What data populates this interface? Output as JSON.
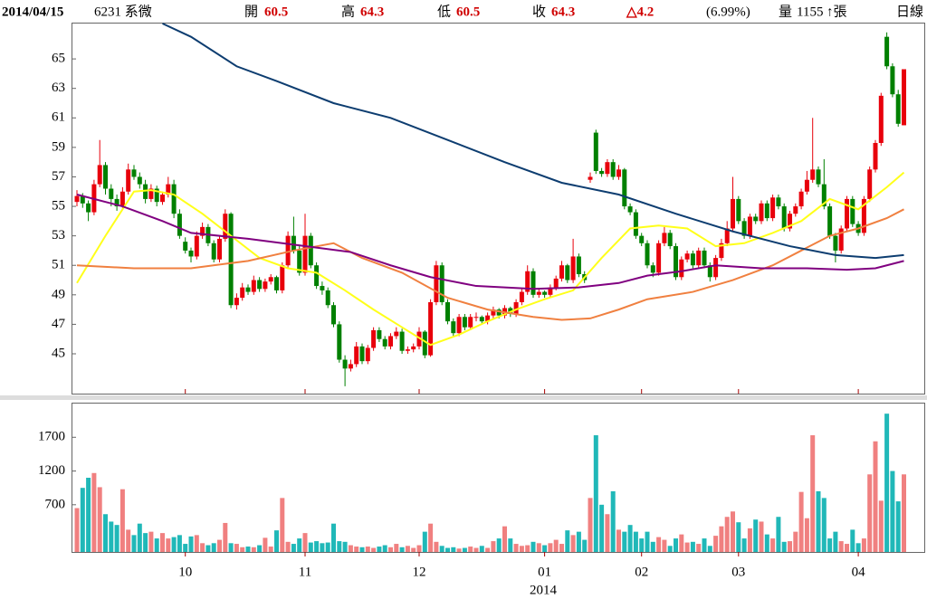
{
  "header": {
    "date": "2014/04/15",
    "stock": "6231 系微",
    "open_label": "開",
    "open": 60.5,
    "high_label": "高",
    "high": 64.3,
    "low_label": "低",
    "low": 60.5,
    "close_label": "收",
    "close": 64.3,
    "change": "△4.2",
    "change_pct": "(6.99%)",
    "volume_label": "量",
    "volume": 1155,
    "volume_unit": "↑張",
    "period": "日線"
  },
  "chart_data": {
    "type": "candlestick",
    "up_color": "#e8000b",
    "down_color": "#008000",
    "categories": [
      null,
      null,
      null,
      null,
      null,
      null,
      null,
      null,
      null,
      null,
      null,
      null,
      null,
      null,
      null,
      null,
      null,
      null,
      null,
      "10",
      null,
      null,
      null,
      null,
      null,
      null,
      null,
      null,
      null,
      null,
      null,
      null,
      null,
      null,
      null,
      null,
      null,
      null,
      null,
      null,
      "11",
      null,
      null,
      null,
      null,
      null,
      null,
      null,
      null,
      null,
      null,
      null,
      null,
      null,
      null,
      null,
      null,
      null,
      null,
      null,
      "12",
      null,
      null,
      null,
      null,
      null,
      null,
      null,
      null,
      null,
      null,
      null,
      null,
      null,
      null,
      null,
      null,
      null,
      null,
      null,
      null,
      null,
      "01",
      null,
      null,
      null,
      null,
      null,
      null,
      null,
      null,
      null,
      null,
      null,
      null,
      null,
      null,
      null,
      null,
      "02",
      null,
      null,
      null,
      null,
      null,
      null,
      null,
      null,
      null,
      null,
      null,
      null,
      null,
      null,
      null,
      null,
      "03",
      null,
      null,
      null,
      null,
      null,
      null,
      null,
      null,
      null,
      null,
      null,
      null,
      null,
      null,
      null,
      null,
      null,
      null,
      null,
      null,
      "04",
      null,
      null,
      null,
      null,
      null,
      null,
      null,
      null
    ],
    "x_year": "2014",
    "ohlc": [
      [
        55.3,
        56.1,
        55.0,
        55.7
      ],
      [
        55.7,
        55.9,
        54.9,
        55.2
      ],
      [
        55.2,
        55.4,
        54.0,
        54.6
      ],
      [
        54.6,
        56.8,
        54.4,
        56.5
      ],
      [
        56.5,
        59.5,
        56.3,
        57.8
      ],
      [
        57.8,
        58.0,
        55.8,
        56.2
      ],
      [
        56.2,
        56.5,
        55.0,
        55.5
      ],
      [
        55.5,
        55.8,
        54.7,
        55.0
      ],
      [
        55.0,
        56.3,
        54.8,
        56.0
      ],
      [
        56.0,
        57.9,
        55.8,
        57.5
      ],
      [
        57.5,
        57.8,
        56.8,
        57.0
      ],
      [
        57.0,
        57.3,
        56.2,
        56.5
      ],
      [
        56.5,
        56.8,
        55.2,
        55.5
      ],
      [
        55.5,
        56.5,
        55.3,
        56.2
      ],
      [
        56.2,
        56.4,
        55.0,
        55.3
      ],
      [
        55.3,
        56.0,
        55.1,
        55.8
      ],
      [
        55.8,
        57.0,
        55.6,
        56.5
      ],
      [
        56.5,
        56.8,
        54.2,
        54.5
      ],
      [
        54.5,
        54.8,
        52.8,
        53.0
      ],
      [
        52.6,
        52.9,
        51.8,
        52.0
      ],
      [
        52.0,
        52.2,
        51.2,
        51.6
      ],
      [
        51.6,
        53.3,
        51.4,
        53.0
      ],
      [
        53.0,
        53.9,
        52.8,
        53.6
      ],
      [
        53.6,
        53.8,
        52.3,
        52.5
      ],
      [
        52.5,
        52.7,
        51.2,
        51.4
      ],
      [
        51.4,
        53.0,
        51.2,
        52.8
      ],
      [
        52.8,
        54.8,
        52.6,
        54.5
      ],
      [
        54.5,
        54.6,
        48.1,
        48.3
      ],
      [
        48.3,
        49.1,
        48.0,
        48.8
      ],
      [
        48.8,
        49.8,
        48.6,
        49.5
      ],
      [
        49.5,
        49.7,
        49.0,
        49.2
      ],
      [
        49.2,
        50.3,
        49.0,
        50.0
      ],
      [
        50.0,
        50.2,
        49.2,
        49.4
      ],
      [
        49.4,
        50.1,
        49.2,
        49.9
      ],
      [
        49.9,
        50.4,
        49.7,
        50.2
      ],
      [
        50.2,
        50.3,
        49.1,
        49.3
      ],
      [
        49.3,
        51.2,
        49.1,
        51.0
      ],
      [
        51.0,
        53.3,
        50.8,
        53.0
      ],
      [
        53.0,
        54.3,
        51.8,
        52.0
      ],
      [
        52.0,
        52.3,
        50.3,
        50.5
      ],
      [
        50.5,
        54.5,
        50.3,
        53.0
      ],
      [
        53.0,
        53.2,
        50.8,
        51.0
      ],
      [
        51.0,
        51.2,
        49.4,
        49.6
      ],
      [
        49.6,
        49.9,
        49.0,
        49.3
      ],
      [
        49.3,
        49.5,
        48.1,
        48.3
      ],
      [
        48.3,
        48.5,
        46.8,
        47.0
      ],
      [
        47.0,
        47.2,
        44.4,
        44.6
      ],
      [
        44.6,
        44.9,
        42.8,
        44.0
      ],
      [
        44.0,
        44.6,
        43.8,
        44.3
      ],
      [
        44.3,
        45.8,
        44.1,
        45.5
      ],
      [
        45.5,
        45.7,
        44.3,
        44.5
      ],
      [
        44.5,
        45.6,
        44.3,
        45.4
      ],
      [
        45.4,
        46.8,
        45.2,
        46.6
      ],
      [
        46.6,
        46.8,
        45.8,
        46.0
      ],
      [
        46.0,
        46.2,
        45.3,
        45.5
      ],
      [
        45.5,
        46.4,
        45.3,
        46.2
      ],
      [
        46.2,
        46.8,
        46.0,
        46.5
      ],
      [
        46.5,
        46.7,
        45.0,
        45.2
      ],
      [
        45.2,
        45.5,
        45.0,
        45.3
      ],
      [
        45.3,
        45.7,
        45.1,
        45.5
      ],
      [
        45.5,
        46.8,
        45.3,
        46.5
      ],
      [
        46.5,
        46.6,
        44.7,
        44.9
      ],
      [
        44.9,
        48.7,
        44.8,
        48.5
      ],
      [
        48.5,
        51.3,
        48.3,
        51.0
      ],
      [
        51.0,
        51.2,
        48.3,
        48.5
      ],
      [
        48.5,
        48.7,
        47.0,
        47.2
      ],
      [
        47.2,
        47.4,
        46.2,
        46.4
      ],
      [
        46.4,
        47.7,
        46.2,
        47.5
      ],
      [
        47.5,
        47.7,
        46.6,
        46.8
      ],
      [
        46.8,
        47.7,
        46.6,
        47.5
      ],
      [
        47.5,
        47.8,
        47.2,
        47.5
      ],
      [
        47.5,
        47.6,
        47.0,
        47.2
      ],
      [
        47.2,
        47.8,
        47.0,
        47.6
      ],
      [
        47.6,
        48.2,
        47.4,
        48.0
      ],
      [
        48.0,
        48.1,
        47.4,
        47.6
      ],
      [
        47.6,
        48.3,
        47.4,
        48.1
      ],
      [
        48.1,
        48.2,
        47.5,
        47.7
      ],
      [
        47.7,
        48.7,
        47.5,
        48.5
      ],
      [
        48.5,
        49.4,
        48.3,
        49.2
      ],
      [
        49.2,
        51.0,
        49.0,
        50.6
      ],
      [
        50.6,
        50.8,
        48.8,
        49.0
      ],
      [
        49.0,
        49.4,
        48.8,
        49.2
      ],
      [
        49.2,
        49.3,
        48.8,
        49.0
      ],
      [
        49.0,
        49.7,
        48.8,
        49.5
      ],
      [
        49.5,
        50.3,
        49.3,
        50.1
      ],
      [
        50.1,
        51.3,
        49.9,
        51.0
      ],
      [
        51.0,
        51.1,
        49.8,
        50.0
      ],
      [
        50.0,
        52.8,
        49.8,
        51.6
      ],
      [
        51.6,
        51.8,
        50.2,
        50.4
      ],
      [
        50.4,
        50.6,
        49.8,
        50.0
      ],
      [
        56.8,
        57.3,
        56.6,
        57.0
      ],
      [
        60.0,
        60.2,
        57.2,
        57.4
      ],
      [
        57.4,
        57.6,
        57.0,
        57.2
      ],
      [
        57.2,
        58.2,
        57.0,
        58.0
      ],
      [
        58.0,
        58.2,
        56.8,
        57.0
      ],
      [
        57.0,
        57.8,
        56.8,
        57.5
      ],
      [
        57.5,
        57.6,
        54.8,
        55.0
      ],
      [
        55.0,
        55.2,
        54.4,
        54.6
      ],
      [
        54.6,
        54.8,
        52.8,
        53.0
      ],
      [
        53.0,
        53.2,
        52.3,
        52.5
      ],
      [
        52.5,
        52.7,
        50.8,
        51.0
      ],
      [
        51.0,
        51.2,
        50.2,
        50.5
      ],
      [
        50.5,
        52.7,
        50.3,
        52.5
      ],
      [
        52.5,
        53.6,
        52.3,
        53.2
      ],
      [
        53.2,
        53.4,
        52.1,
        52.3
      ],
      [
        52.3,
        52.5,
        50.0,
        50.2
      ],
      [
        50.2,
        51.6,
        50.0,
        51.4
      ],
      [
        51.4,
        52.0,
        51.2,
        51.8
      ],
      [
        51.8,
        52.0,
        50.8,
        51.0
      ],
      [
        51.0,
        52.2,
        50.8,
        52.0
      ],
      [
        52.0,
        52.2,
        50.8,
        51.0
      ],
      [
        51.0,
        51.2,
        49.9,
        50.2
      ],
      [
        50.2,
        51.7,
        50.0,
        51.5
      ],
      [
        51.5,
        52.8,
        51.3,
        52.5
      ],
      [
        52.5,
        54.0,
        52.3,
        53.5
      ],
      [
        53.5,
        57.0,
        53.3,
        55.5
      ],
      [
        55.5,
        55.7,
        53.8,
        54.0
      ],
      [
        54.0,
        54.2,
        52.8,
        53.0
      ],
      [
        53.0,
        54.5,
        52.8,
        54.3
      ],
      [
        54.3,
        54.5,
        53.8,
        54.0
      ],
      [
        54.0,
        55.4,
        53.8,
        55.2
      ],
      [
        55.2,
        55.4,
        54.0,
        54.2
      ],
      [
        54.2,
        55.8,
        54.0,
        55.6
      ],
      [
        55.6,
        55.8,
        54.8,
        55.0
      ],
      [
        55.0,
        55.2,
        53.3,
        53.5
      ],
      [
        53.5,
        54.7,
        53.3,
        54.5
      ],
      [
        54.5,
        55.2,
        54.3,
        55.0
      ],
      [
        55.0,
        56.2,
        54.8,
        56.0
      ],
      [
        56.0,
        57.4,
        55.8,
        56.8
      ],
      [
        56.8,
        61.0,
        56.6,
        57.5
      ],
      [
        57.5,
        57.7,
        56.3,
        56.5
      ],
      [
        56.5,
        58.2,
        54.8,
        55.0
      ],
      [
        55.0,
        55.2,
        52.8,
        53.0
      ],
      [
        53.0,
        53.2,
        51.2,
        52.0
      ],
      [
        52.0,
        53.7,
        51.8,
        53.5
      ],
      [
        53.5,
        55.7,
        53.3,
        55.5
      ],
      [
        55.5,
        55.7,
        53.6,
        53.8
      ],
      [
        53.8,
        54.0,
        53.0,
        53.2
      ],
      [
        53.2,
        55.7,
        53.0,
        55.5
      ],
      [
        55.5,
        57.7,
        55.3,
        57.5
      ],
      [
        57.5,
        59.5,
        57.3,
        59.3
      ],
      [
        59.3,
        62.7,
        59.1,
        62.5
      ],
      [
        66.5,
        66.8,
        64.3,
        64.5
      ],
      [
        64.5,
        64.7,
        62.4,
        62.6
      ],
      [
        62.6,
        62.9,
        60.4,
        60.6
      ],
      [
        60.5,
        64.3,
        60.5,
        64.3
      ]
    ],
    "ylim": [
      42.3,
      67.4
    ],
    "yticks": [
      45,
      47,
      49,
      51,
      53,
      55,
      57,
      59,
      61,
      63,
      65
    ],
    "series": [
      {
        "color": "#ffff1a",
        "x": [
          0,
          5,
          10,
          13,
          17,
          22,
          27,
          32,
          37,
          42,
          47,
          52,
          57,
          62,
          67,
          72,
          77,
          82,
          87,
          92,
          97,
          102,
          107,
          112,
          117,
          122,
          127,
          132,
          137,
          142,
          145
        ],
        "values": [
          49.8,
          53,
          56,
          56.1,
          55.8,
          54.5,
          53,
          51.5,
          50.8,
          50.5,
          49.3,
          48,
          46.8,
          45.6,
          46.3,
          47.2,
          48,
          48.7,
          49.3,
          51.5,
          53.5,
          53.7,
          53.5,
          52.3,
          52.5,
          53.2,
          54,
          55.5,
          54.8,
          56.3,
          57.3
        ]
      },
      {
        "color": "#f08040",
        "x": [
          0,
          10,
          20,
          30,
          38,
          45,
          50,
          57,
          65,
          72,
          80,
          85,
          90,
          95,
          100,
          108,
          115,
          122,
          127,
          132,
          137,
          142,
          145
        ],
        "values": [
          51,
          50.8,
          50.8,
          51.3,
          52,
          52.5,
          51.5,
          50.5,
          48.8,
          48,
          47.5,
          47.3,
          47.4,
          48,
          48.7,
          49.2,
          50,
          51,
          52,
          53,
          53.5,
          54.2,
          54.8
        ]
      },
      {
        "color": "#800080",
        "x": [
          0,
          8,
          15,
          20,
          30,
          40,
          48,
          55,
          62,
          70,
          80,
          88,
          95,
          100,
          106,
          112,
          120,
          128,
          135,
          140,
          145
        ],
        "values": [
          55.8,
          55,
          54,
          53.2,
          52.8,
          52.3,
          51.9,
          51,
          50.2,
          49.6,
          49.4,
          49.5,
          49.8,
          50.3,
          50.6,
          51,
          50.8,
          50.8,
          50.7,
          50.8,
          51.3
        ]
      },
      {
        "color": "#0d3d70",
        "x": [
          15,
          20,
          28,
          35,
          45,
          55,
          65,
          75,
          85,
          95,
          105,
          115,
          125,
          133,
          140,
          145
        ],
        "values": [
          67.4,
          66.5,
          64.5,
          63.5,
          62,
          61,
          59.5,
          58,
          56.6,
          55.8,
          54.5,
          53.3,
          52.3,
          51.7,
          51.5,
          51.7
        ]
      }
    ],
    "volume": {
      "up_color": "#f08080",
      "down_color": "#20b8b8",
      "ylim": [
        0,
        2200
      ],
      "yticks": [
        700,
        1200,
        1700
      ],
      "values": [
        650,
        950,
        1100,
        1170,
        960,
        560,
        450,
        400,
        930,
        330,
        250,
        420,
        280,
        300,
        200,
        280,
        200,
        220,
        250,
        120,
        230,
        250,
        130,
        100,
        130,
        180,
        430,
        130,
        120,
        70,
        80,
        70,
        100,
        210,
        80,
        320,
        800,
        150,
        120,
        200,
        280,
        140,
        160,
        130,
        140,
        420,
        160,
        150,
        100,
        80,
        70,
        80,
        60,
        80,
        100,
        70,
        120,
        70,
        90,
        60,
        100,
        300,
        420,
        150,
        90,
        60,
        70,
        50,
        60,
        80,
        60,
        90,
        60,
        160,
        200,
        380,
        200,
        120,
        90,
        100,
        150,
        130,
        100,
        130,
        180,
        120,
        320,
        250,
        300,
        180,
        800,
        1730,
        700,
        560,
        900,
        330,
        300,
        400,
        300,
        200,
        300,
        150,
        220,
        180,
        90,
        200,
        260,
        140,
        150,
        120,
        200,
        90,
        240,
        380,
        520,
        600,
        440,
        200,
        350,
        480,
        450,
        260,
        200,
        520,
        150,
        160,
        300,
        890,
        500,
        1730,
        900,
        800,
        200,
        300,
        160,
        120,
        330,
        130,
        200,
        1150,
        1640,
        760,
        2050,
        1200,
        750,
        1150
      ]
    }
  }
}
